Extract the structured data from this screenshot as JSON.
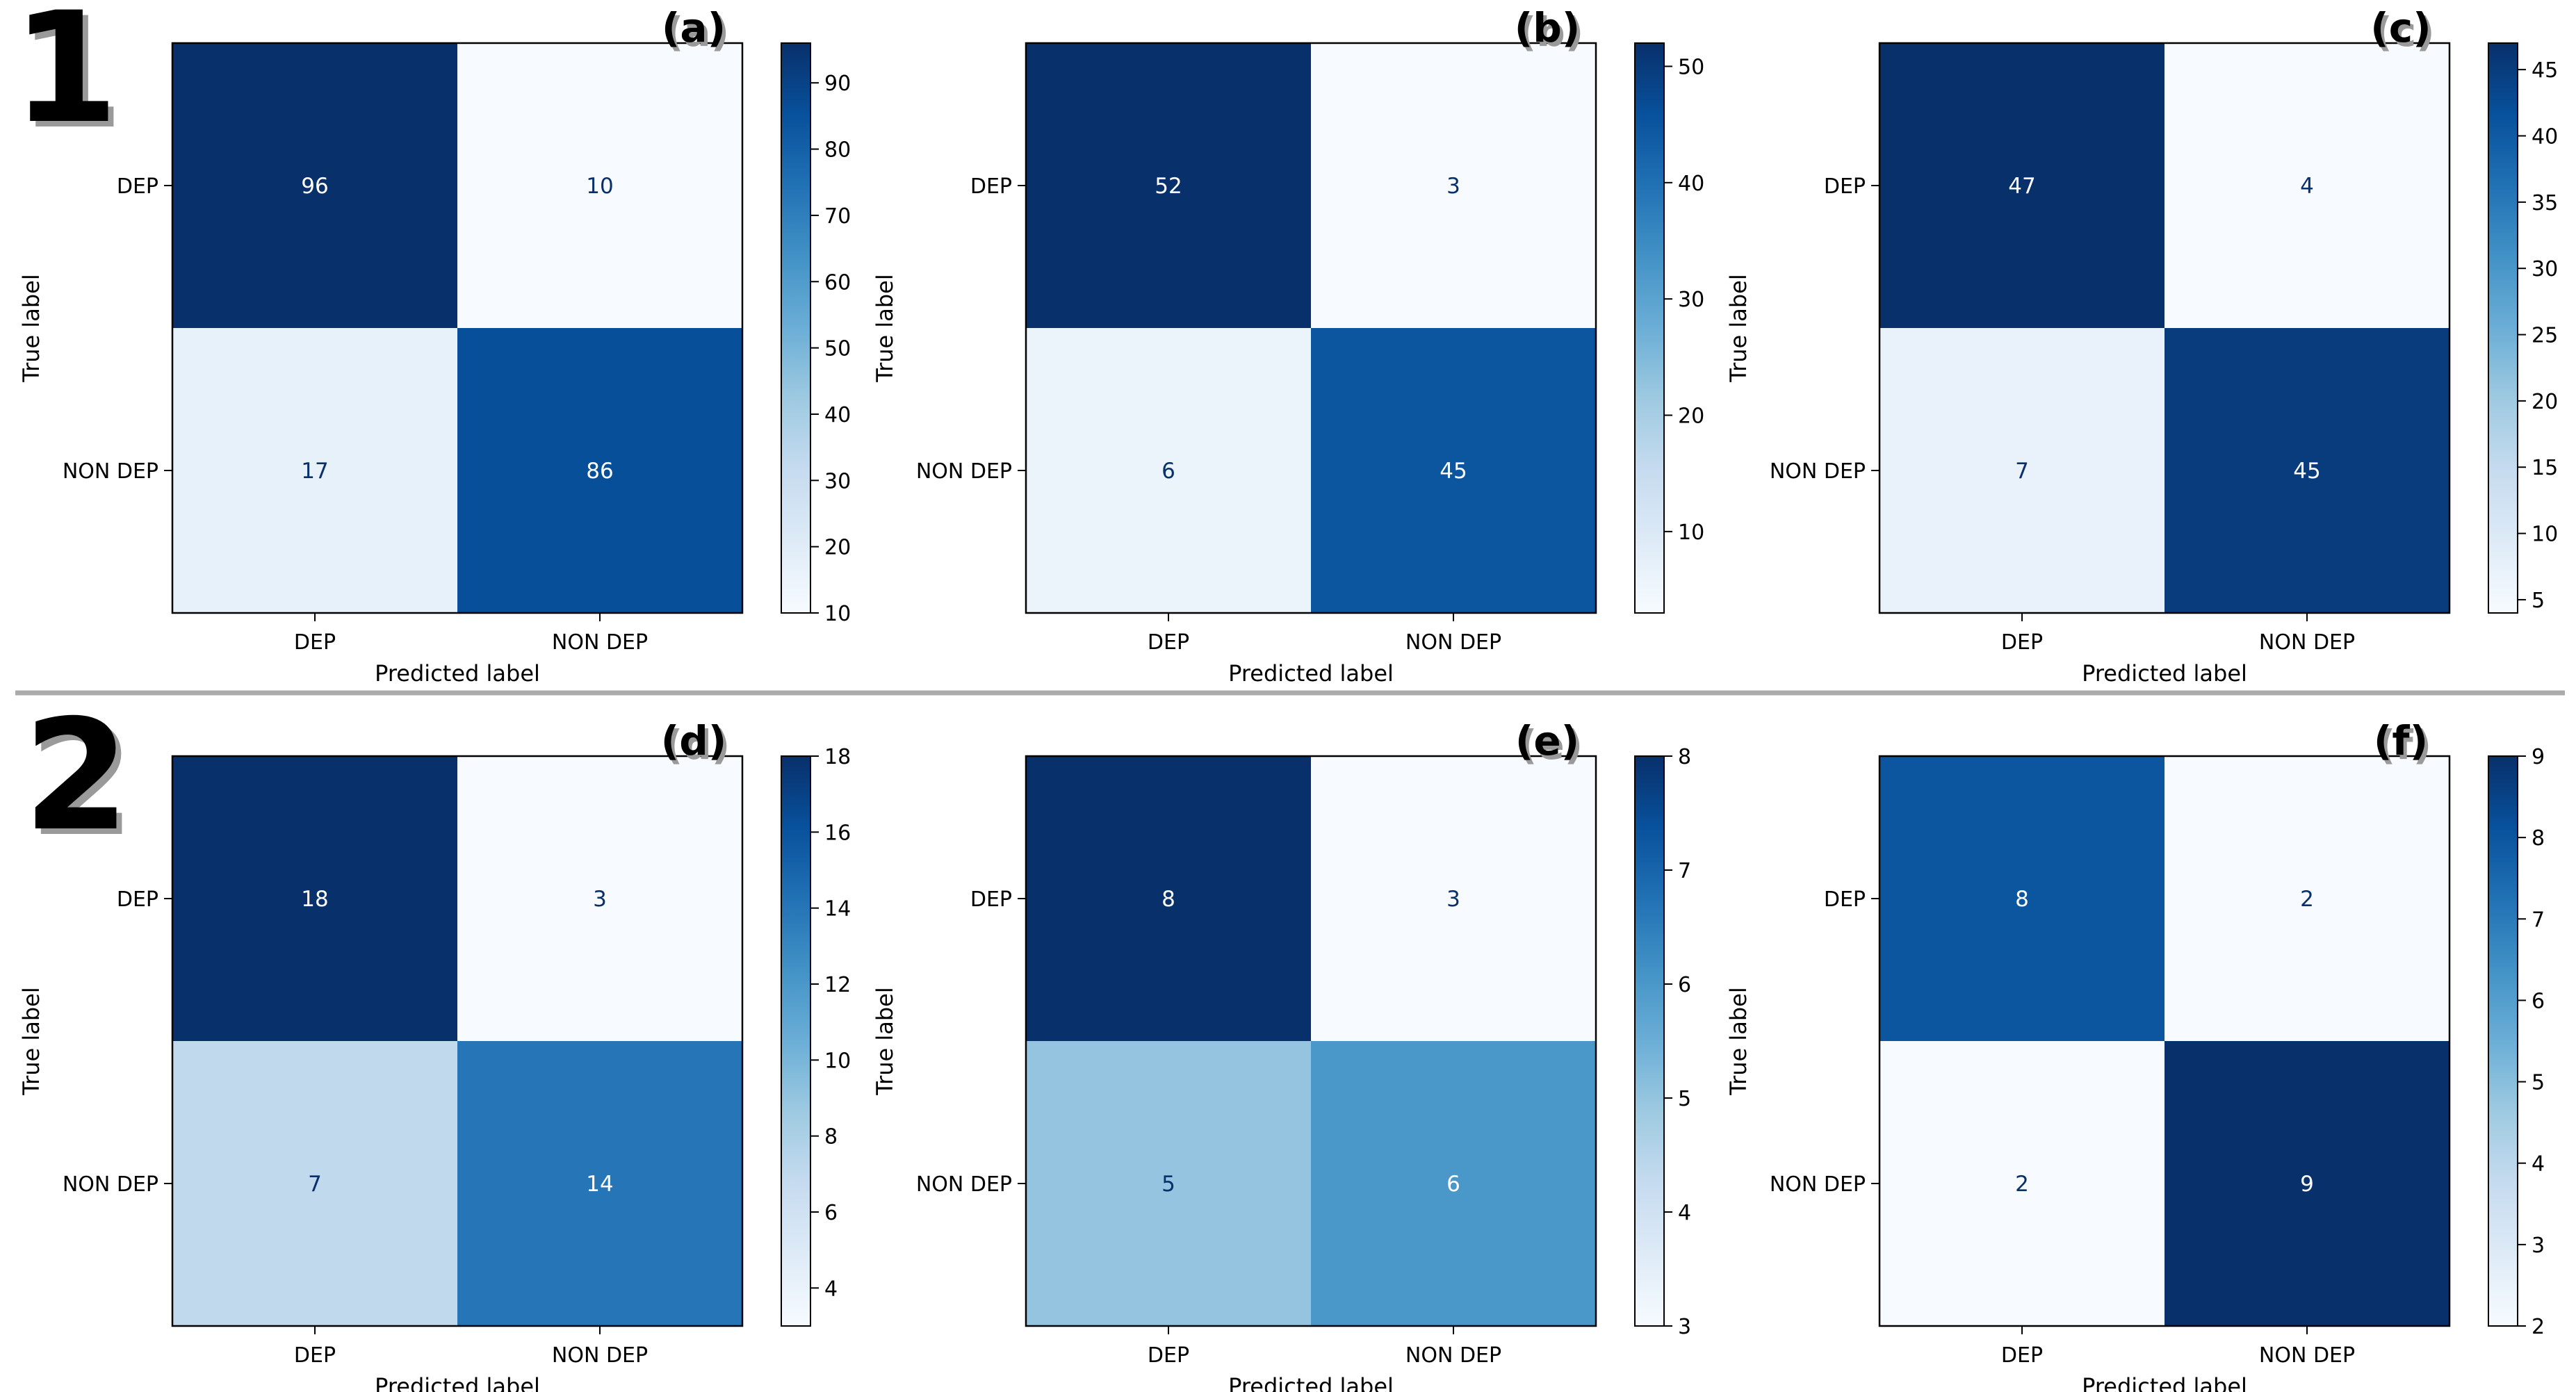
{
  "row_labels": [
    "1",
    "2"
  ],
  "chart_data": [
    {
      "type": "heatmap",
      "panel_label": "(a)",
      "xlabel": "Predicted label",
      "ylabel": "True label",
      "x_categories": [
        "DEP",
        "NON DEP"
      ],
      "y_categories": [
        "DEP",
        "NON DEP"
      ],
      "values": [
        [
          96,
          10
        ],
        [
          17,
          86
        ]
      ],
      "colorbar": {
        "min": 10,
        "max": 96,
        "ticks": [
          10,
          20,
          30,
          40,
          50,
          60,
          70,
          80,
          90
        ]
      }
    },
    {
      "type": "heatmap",
      "panel_label": "(b)",
      "xlabel": "Predicted label",
      "ylabel": "True label",
      "x_categories": [
        "DEP",
        "NON DEP"
      ],
      "y_categories": [
        "DEP",
        "NON DEP"
      ],
      "values": [
        [
          52,
          3
        ],
        [
          6,
          45
        ]
      ],
      "colorbar": {
        "min": 3,
        "max": 52,
        "ticks": [
          10,
          20,
          30,
          40,
          50
        ]
      }
    },
    {
      "type": "heatmap",
      "panel_label": "(c)",
      "xlabel": "Predicted label",
      "ylabel": "True label",
      "x_categories": [
        "DEP",
        "NON DEP"
      ],
      "y_categories": [
        "DEP",
        "NON DEP"
      ],
      "values": [
        [
          47,
          4
        ],
        [
          7,
          45
        ]
      ],
      "colorbar": {
        "min": 4,
        "max": 47,
        "ticks": [
          5,
          10,
          15,
          20,
          25,
          30,
          35,
          40,
          45
        ]
      }
    },
    {
      "type": "heatmap",
      "panel_label": "(d)",
      "xlabel": "Predicted label",
      "ylabel": "True label",
      "x_categories": [
        "DEP",
        "NON DEP"
      ],
      "y_categories": [
        "DEP",
        "NON DEP"
      ],
      "values": [
        [
          18,
          3
        ],
        [
          7,
          14
        ]
      ],
      "colorbar": {
        "min": 3,
        "max": 18,
        "ticks": [
          4,
          6,
          8,
          10,
          12,
          14,
          16,
          18
        ]
      }
    },
    {
      "type": "heatmap",
      "panel_label": "(e)",
      "xlabel": "Predicted label",
      "ylabel": "True label",
      "x_categories": [
        "DEP",
        "NON DEP"
      ],
      "y_categories": [
        "DEP",
        "NON DEP"
      ],
      "values": [
        [
          8,
          3
        ],
        [
          5,
          6
        ]
      ],
      "colorbar": {
        "min": 3,
        "max": 8,
        "ticks": [
          3,
          4,
          5,
          6,
          7,
          8
        ]
      }
    },
    {
      "type": "heatmap",
      "panel_label": "(f)",
      "xlabel": "Predicted label",
      "ylabel": "True label",
      "x_categories": [
        "DEP",
        "NON DEP"
      ],
      "y_categories": [
        "DEP",
        "NON DEP"
      ],
      "values": [
        [
          8,
          2
        ],
        [
          2,
          9
        ]
      ],
      "colorbar": {
        "min": 2,
        "max": 9,
        "ticks": [
          2,
          3,
          4,
          5,
          6,
          7,
          8,
          9
        ]
      }
    }
  ]
}
